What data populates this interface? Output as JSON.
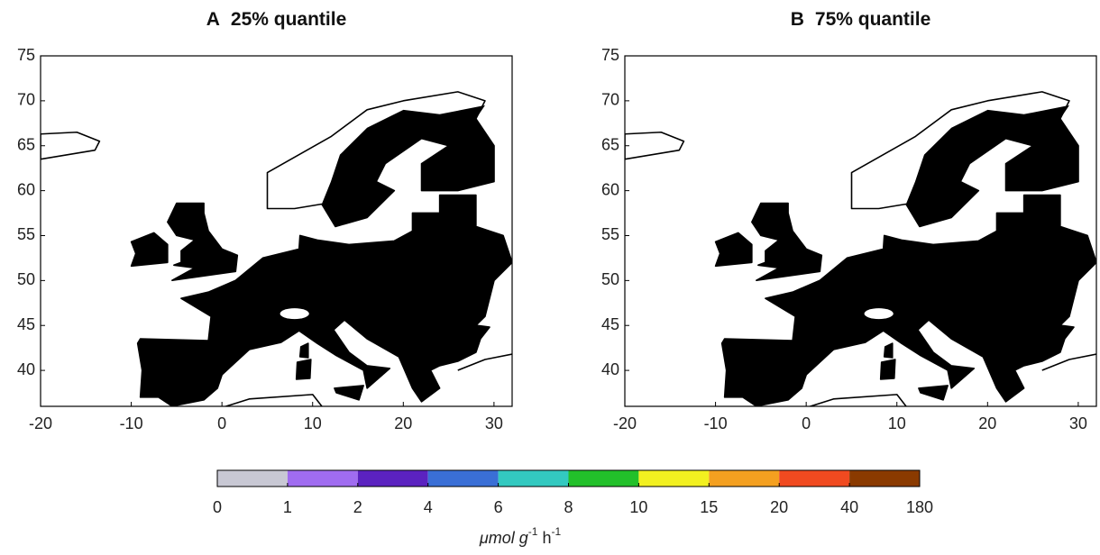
{
  "panels": [
    {
      "label": "A",
      "title": "25% quantile",
      "xlim": [
        -20,
        32
      ],
      "ylim": [
        36,
        75
      ],
      "xticks": [
        -20,
        -10,
        0,
        10,
        20,
        30
      ],
      "yticks": [
        75,
        70,
        65,
        60,
        55,
        50,
        45,
        40
      ]
    },
    {
      "label": "B",
      "title": "75% quantile",
      "xlim": [
        -20,
        32
      ],
      "ylim": [
        36,
        75
      ],
      "xticks": [
        -20,
        -10,
        0,
        10,
        20,
        30
      ],
      "yticks": [
        75,
        70,
        65,
        60,
        55,
        50,
        45,
        40
      ]
    }
  ],
  "colorbar": {
    "bounds": [
      0,
      1,
      2,
      4,
      6,
      8,
      10,
      15,
      20,
      40,
      180
    ],
    "colors": [
      "#c8c8d4",
      "#a06cf0",
      "#5b22c0",
      "#3a6fd6",
      "#33c9c0",
      "#22c02a",
      "#f2f020",
      "#f4a020",
      "#f04a20",
      "#8a3a00"
    ],
    "unit": [
      "μmol g",
      "-1",
      " h",
      "-1"
    ]
  }
}
